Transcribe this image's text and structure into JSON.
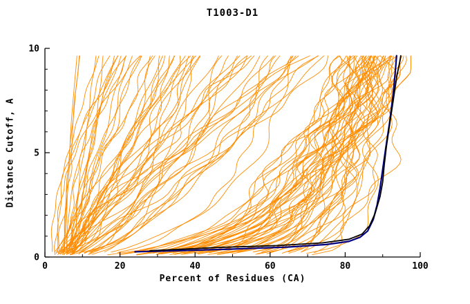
{
  "chart_data": {
    "type": "line",
    "title": "T1003-D1",
    "xlabel": "Percent of Residues (CA)",
    "ylabel": "Distance Cutoff, A",
    "xlim": [
      0,
      100
    ],
    "ylim": [
      0,
      10
    ],
    "x_major_ticks": [
      0,
      20,
      40,
      60,
      80,
      100
    ],
    "x_minor_step": 10,
    "y_major_ticks": [
      0,
      5,
      10
    ],
    "y_minor_step": 1,
    "frame_color": "#000000",
    "series": [
      {
        "name": "highlighted-model-blue",
        "color": "#000080",
        "width": 2.2,
        "points": [
          [
            24,
            0.25
          ],
          [
            35,
            0.3
          ],
          [
            50,
            0.38
          ],
          [
            65,
            0.48
          ],
          [
            75,
            0.6
          ],
          [
            81,
            0.75
          ],
          [
            84,
            0.95
          ],
          [
            86,
            1.25
          ],
          [
            87.5,
            1.8
          ],
          [
            88.5,
            2.5
          ],
          [
            89.3,
            3.3
          ],
          [
            90,
            4.2
          ],
          [
            90.8,
            5.2
          ],
          [
            91.8,
            6.4
          ],
          [
            92.8,
            7.8
          ],
          [
            93.4,
            9.0
          ],
          [
            93.7,
            9.65
          ]
        ]
      },
      {
        "name": "highlighted-model-black",
        "color": "#000000",
        "width": 1.8,
        "points": [
          [
            28,
            0.3
          ],
          [
            45,
            0.45
          ],
          [
            62,
            0.55
          ],
          [
            74,
            0.68
          ],
          [
            81,
            0.85
          ],
          [
            84.5,
            1.1
          ],
          [
            86.5,
            1.5
          ],
          [
            88,
            2.1
          ],
          [
            89.3,
            2.9
          ],
          [
            90,
            3.6
          ],
          [
            90.4,
            4.4
          ],
          [
            91,
            5.3
          ],
          [
            91.8,
            6.3
          ],
          [
            92.8,
            7.5
          ],
          [
            93.8,
            8.7
          ],
          [
            94.6,
            9.4
          ],
          [
            94.8,
            9.65
          ]
        ]
      }
    ],
    "ensemble": {
      "name": "prediction-ensemble",
      "color": "#ff8c00",
      "count": 115,
      "seed": 11,
      "width": 0.9,
      "y_start": 0.1,
      "y_end": 9.65
    }
  }
}
